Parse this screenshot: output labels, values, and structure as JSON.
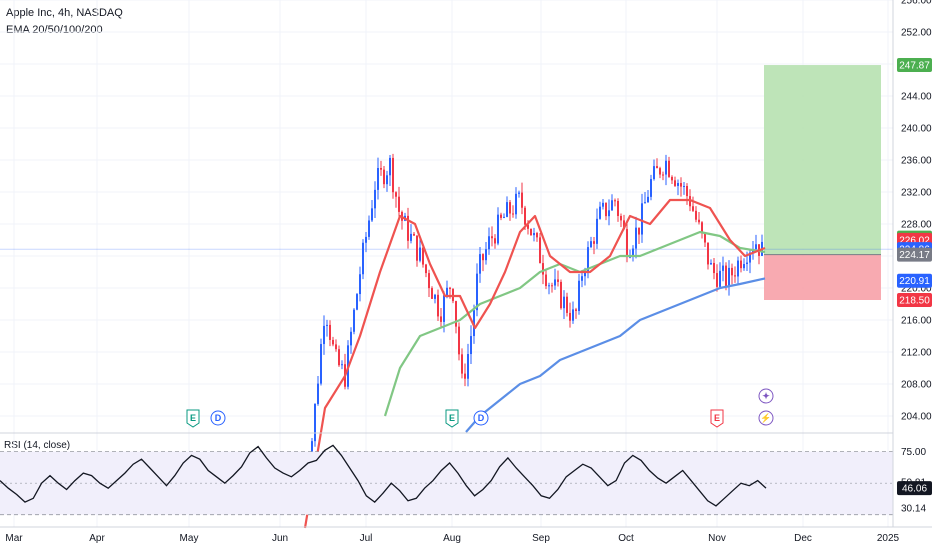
{
  "header": {
    "title": "Apple Inc, 4h, NASDAQ",
    "studies": "EMA 20/50/100/200"
  },
  "rsi": {
    "title": "RSI (14, close)",
    "ticks": [
      "75.00",
      "50.81",
      "30.14"
    ],
    "value_label": "46.06",
    "band_upper": 75.0,
    "band_lower": 25.0,
    "level": 46.06
  },
  "colors": {
    "up": "#2962ff",
    "down": "#f23645",
    "ema20": "#ef5350",
    "ema50": "#81c784",
    "ema200": "#5b8ee6",
    "target_zone": "#b7e1b0",
    "stop_zone": "#f7a1a8",
    "rsi_line": "#131722",
    "rsi_band": "#f1effb"
  },
  "events": [
    {
      "kind": "earnings",
      "label": "E",
      "color": "#089981",
      "month": "May"
    },
    {
      "kind": "dividend",
      "label": "D",
      "color": "#2962ff",
      "month": "May"
    },
    {
      "kind": "earnings",
      "label": "E",
      "color": "#089981",
      "month": "Aug"
    },
    {
      "kind": "dividend",
      "label": "D",
      "color": "#2962ff",
      "month": "Aug"
    },
    {
      "kind": "earnings",
      "label": "E",
      "color": "#f23645",
      "month": "Nov"
    },
    {
      "kind": "idea",
      "label": "✦",
      "color": "#7e57c2",
      "month": "Nov"
    },
    {
      "kind": "flash",
      "label": "⚡",
      "color": "#7e57c2",
      "month": "Nov"
    }
  ],
  "chart_data": {
    "type": "candlestick",
    "ylim": [
      202,
      256
    ],
    "y_ticks": [
      204,
      208,
      212,
      216,
      220,
      224,
      228,
      232,
      236,
      240,
      244,
      248,
      252,
      256
    ],
    "y_tick_labels": [
      "204.00",
      "208.00",
      "212.00",
      "216.00",
      "220.00",
      "224.00",
      "228.00",
      "232.00",
      "236.00",
      "240.00",
      "244.00",
      "248.00",
      "252.00",
      "256.00"
    ],
    "x_labels": [
      "Mar",
      "Apr",
      "May",
      "Jun",
      "Jul",
      "Aug",
      "Sep",
      "Oct",
      "Nov",
      "Dec",
      "2025"
    ],
    "price_tags": [
      {
        "value": 247.87,
        "label": "247.87",
        "color": "#4caf50"
      },
      {
        "value": 226.29,
        "label": "226.29",
        "color": "#4caf50"
      },
      {
        "value": 226.02,
        "label": "226.02",
        "color": "#f23645"
      },
      {
        "value": 224.86,
        "label": "224.86",
        "color": "#2962ff"
      },
      {
        "value": 224.17,
        "label": "224.17",
        "color": "#787b86"
      },
      {
        "value": 220.91,
        "label": "220.91",
        "color": "#2962ff"
      },
      {
        "value": 218.5,
        "label": "218.50",
        "color": "#f23645"
      }
    ],
    "position": {
      "entry": 224.17,
      "target": 247.87,
      "stop": 218.5,
      "start": "Nov",
      "end": "2025"
    },
    "price_path": [
      {
        "x": "Mar",
        "y": 192
      },
      {
        "x": "May",
        "y": 196
      },
      {
        "x": "Jun",
        "y": 205
      },
      {
        "x": "Jun",
        "y": 218
      },
      {
        "x": "Jun",
        "y": 211
      },
      {
        "x": "Jun",
        "y": 209
      },
      {
        "x": "Jul",
        "y": 222
      },
      {
        "x": "Jul",
        "y": 233
      },
      {
        "x": "Jul",
        "y": 235.5
      },
      {
        "x": "Jul",
        "y": 229
      },
      {
        "x": "Jul",
        "y": 224
      },
      {
        "x": "Aug",
        "y": 217
      },
      {
        "x": "Aug",
        "y": 221
      },
      {
        "x": "Aug",
        "y": 208
      },
      {
        "x": "Aug",
        "y": 213
      },
      {
        "x": "Aug",
        "y": 222
      },
      {
        "x": "Aug",
        "y": 226
      },
      {
        "x": "Sep",
        "y": 229
      },
      {
        "x": "Sep",
        "y": 231
      },
      {
        "x": "Sep",
        "y": 224
      },
      {
        "x": "Sep",
        "y": 221
      },
      {
        "x": "Sep",
        "y": 219
      },
      {
        "x": "Sep",
        "y": 216
      },
      {
        "x": "Sep",
        "y": 222
      },
      {
        "x": "Oct",
        "y": 229
      },
      {
        "x": "Oct",
        "y": 231
      },
      {
        "x": "Oct",
        "y": 225
      },
      {
        "x": "Oct",
        "y": 228
      },
      {
        "x": "Oct",
        "y": 233
      },
      {
        "x": "Oct",
        "y": 236
      },
      {
        "x": "Oct",
        "y": 234
      },
      {
        "x": "Oct",
        "y": 231
      },
      {
        "x": "Nov",
        "y": 222
      },
      {
        "x": "Nov",
        "y": 221
      },
      {
        "x": "Nov",
        "y": 224
      },
      {
        "x": "Nov",
        "y": 226
      },
      {
        "x": "Nov",
        "y": 224.17
      }
    ],
    "series": [
      {
        "name": "",
        "values": [
          204,
          209,
          214,
          222,
          229,
          228,
          223,
          216,
          222,
          227,
          229,
          224,
          224,
          229,
          230,
          230,
          232,
          230,
          226,
          224,
          225
        ]
      },
      {
        "name": "",
        "values": [
          204,
          210,
          214,
          215,
          216,
          218,
          219,
          220,
          220,
          222,
          224,
          225,
          225,
          224,
          224
        ]
      },
      {
        "name": "",
        "values": [
          202,
          206,
          209,
          212,
          215,
          217,
          219,
          220,
          221
        ]
      }
    ],
    "grid": true,
    "rsi_values": [
      52,
      46,
      41,
      35,
      38,
      50,
      56,
      50,
      45,
      52,
      58,
      56,
      50,
      46,
      52,
      58,
      65,
      69,
      62,
      55,
      48,
      56,
      66,
      72,
      69,
      60,
      55,
      50,
      56,
      63,
      74,
      79,
      70,
      62,
      58,
      55,
      60,
      66,
      68,
      76,
      80,
      72,
      62,
      52,
      40,
      35,
      42,
      50,
      44,
      36,
      38,
      46,
      52,
      60,
      66,
      58,
      48,
      40,
      45,
      52,
      63,
      70,
      62,
      55,
      48,
      40,
      38,
      45,
      55,
      60,
      65,
      62,
      55,
      48,
      52,
      66,
      72,
      68,
      60,
      54,
      50,
      55,
      60,
      52,
      44,
      36,
      32,
      38,
      44,
      50,
      48,
      52,
      46.06
    ]
  }
}
